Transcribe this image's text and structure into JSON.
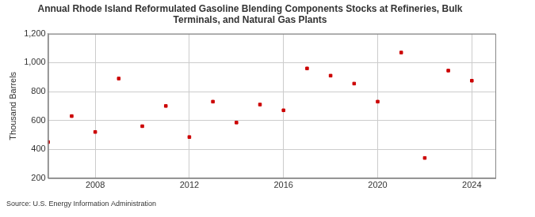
{
  "chart_data": {
    "type": "scatter",
    "title": [
      "Annual Rhode Island Reformulated Gasoline Blending Components Stocks at Refineries, Bulk",
      "Terminals, and Natural Gas Plants"
    ],
    "y_label": "Thousand Barrels",
    "annotation": "Source: U.S. Energy Information Administration",
    "x": [
      2006,
      2007,
      2008,
      2009,
      2010,
      2011,
      2012,
      2013,
      2014,
      2015,
      2016,
      2017,
      2018,
      2019,
      2020,
      2021,
      2022,
      2023,
      2024
    ],
    "values": [
      450,
      630,
      520,
      890,
      560,
      700,
      485,
      730,
      585,
      710,
      670,
      960,
      910,
      855,
      730,
      1070,
      340,
      945,
      875
    ],
    "color": "#cc0000",
    "marker": "square",
    "xlim": [
      2006,
      2025
    ],
    "xticks": [
      2008,
      2012,
      2016,
      2020,
      2024
    ],
    "ylim": [
      200,
      1200
    ],
    "yticks": [
      200,
      400,
      600,
      800,
      {
        "value": 1000,
        "label": "1,000"
      },
      {
        "value": 1200,
        "label": "1,200"
      }
    ],
    "grid": true
  }
}
